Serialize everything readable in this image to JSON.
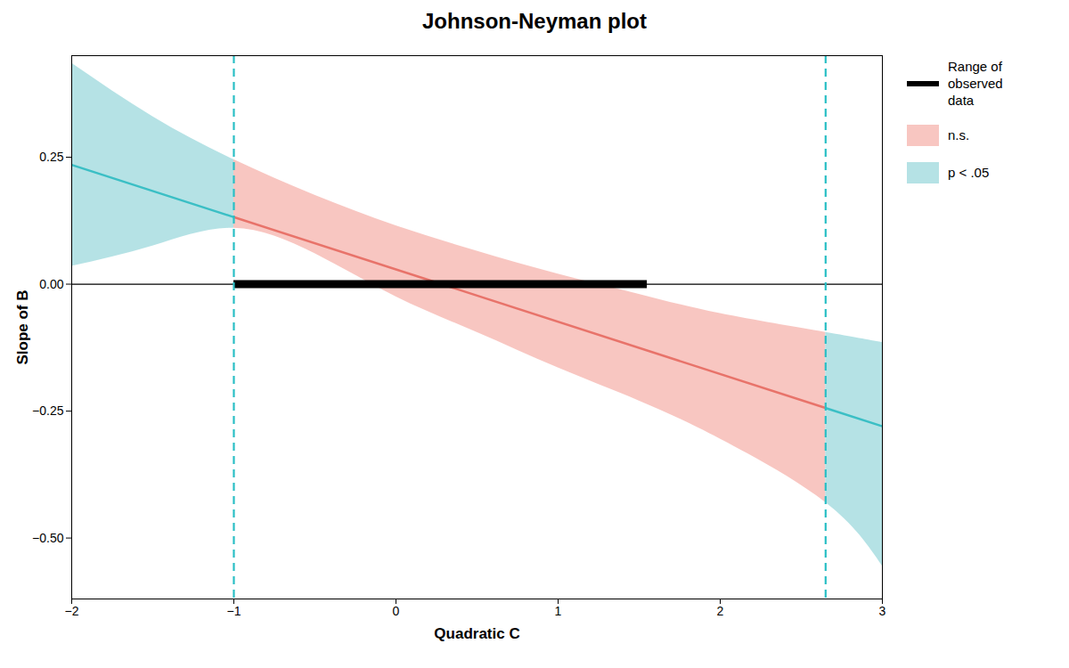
{
  "chart_data": {
    "type": "area",
    "title": "Johnson-Neyman plot",
    "xlabel": "Quadratic C",
    "ylabel": "Slope of B",
    "xlim": [
      -2,
      3
    ],
    "ylim": [
      -0.62,
      0.45
    ],
    "xticks": [
      -2,
      -1,
      0,
      1,
      2,
      3
    ],
    "yticks": [
      {
        "value": -0.5,
        "label": "−0.50"
      },
      {
        "value": -0.25,
        "label": "−0.25"
      },
      {
        "value": 0.0,
        "label": "0.00"
      },
      {
        "value": 0.25,
        "label": "0.25"
      }
    ],
    "x": [
      -2.0,
      -1.5,
      -1.0,
      -0.5,
      0.0,
      0.5,
      1.0,
      1.5,
      2.0,
      2.65,
      3.0
    ],
    "upper": [
      0.435,
      0.33,
      0.245,
      0.175,
      0.115,
      0.065,
      0.02,
      -0.02,
      -0.058,
      -0.095,
      -0.115
    ],
    "lower": [
      0.035,
      0.075,
      0.11,
      0.06,
      -0.025,
      -0.095,
      -0.165,
      -0.23,
      -0.305,
      -0.43,
      -0.555
    ],
    "line": {
      "x": [
        -2,
        3
      ],
      "values": [
        0.235,
        -0.28
      ],
      "color": "#3bbfc5",
      "ns_color": "#e8736a"
    },
    "jn_points": {
      "values": [
        -1.0,
        2.65
      ],
      "color": "#2abfc5",
      "line_style": "dashed"
    },
    "observed_range": [
      -1.0,
      1.55
    ],
    "series": [
      {
        "name": "Range of\nobserved\ndata",
        "color": "#000000",
        "type": "line"
      },
      {
        "name": "n.s.",
        "color": "#f4a7a0",
        "type": "area"
      },
      {
        "name": "p < .05",
        "color": "#8dd3d7",
        "type": "area"
      }
    ],
    "legend": "right"
  }
}
